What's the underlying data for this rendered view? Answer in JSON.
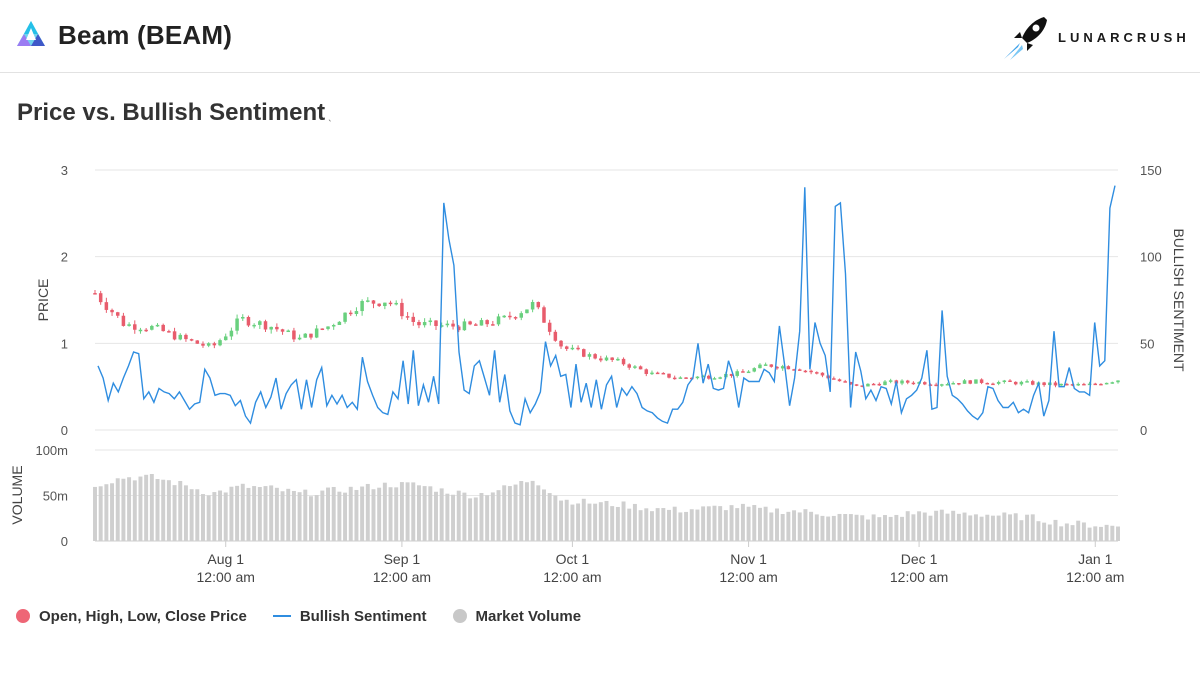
{
  "header": {
    "title": "Beam (BEAM)",
    "brand": "LUNARCRUSH",
    "logo_icon": "beam-triangle-icon",
    "brand_icon": "rocket-icon"
  },
  "colors": {
    "up": "#69d07e",
    "down": "#e85c6c",
    "sentiment": "#2f8de0",
    "volume": "#cfcfcf",
    "legend_ohlc": "#ee6676",
    "legend_volume": "#c8c8c8",
    "grid": "#e6e6e6"
  },
  "chart_data": {
    "type": "candlestick+line+bar",
    "title": "Price vs. Bullish Sentiment",
    "price_axis": {
      "label": "PRICE",
      "ticks": [
        0,
        1,
        2,
        3
      ],
      "range": [
        0,
        3
      ]
    },
    "sentiment_axis": {
      "label": "BULLISH SENTIMENT",
      "ticks": [
        0,
        50,
        100,
        150
      ],
      "range": [
        0,
        150
      ]
    },
    "volume_axis": {
      "label": "VOLUME",
      "ticks": [
        "0",
        "50m",
        "100m"
      ],
      "range": [
        0,
        100
      ]
    },
    "x_axis": {
      "start": "2018-07-09",
      "end": "2019-01-05",
      "ticks": [
        {
          "date": "Aug 1",
          "time": "12:00 am",
          "value": "2018-08-01"
        },
        {
          "date": "Sep 1",
          "time": "12:00 am",
          "value": "2018-09-01"
        },
        {
          "date": "Oct 1",
          "time": "12:00 am",
          "value": "2018-10-01"
        },
        {
          "date": "Nov 1",
          "time": "12:00 am",
          "value": "2018-11-01"
        },
        {
          "date": "Dec 1",
          "time": "12:00 am",
          "value": "2018-12-01"
        },
        {
          "date": "Jan 1",
          "time": "12:00 am",
          "value": "2019-01-01"
        }
      ]
    },
    "price_close_by_week": [
      1.58,
      1.22,
      1.18,
      1.05,
      0.95,
      1.28,
      1.2,
      1.05,
      1.2,
      1.45,
      1.5,
      1.22,
      1.2,
      1.2,
      1.28,
      1.45,
      0.95,
      0.85,
      0.78,
      0.65,
      0.6,
      0.62,
      0.65,
      0.75,
      0.72,
      0.62,
      0.5,
      0.55,
      0.55,
      0.54,
      0.56,
      0.55,
      0.54,
      0.52,
      0.52,
      0.58
    ],
    "sentiment_daily": [
      37,
      30,
      17,
      27,
      22,
      30,
      37,
      45,
      44,
      18,
      22,
      16,
      24,
      22,
      21,
      18,
      22,
      17,
      12,
      15,
      16,
      35,
      30,
      20,
      21,
      21,
      20,
      14,
      17,
      8,
      4,
      16,
      22,
      13,
      19,
      30,
      12,
      21,
      26,
      29,
      12,
      29,
      13,
      29,
      36,
      14,
      20,
      15,
      20,
      13,
      16,
      12,
      42,
      28,
      20,
      13,
      10,
      9,
      22,
      18,
      40,
      15,
      46,
      14,
      26,
      16,
      31,
      15,
      131,
      110,
      95,
      45,
      23,
      21,
      37,
      40,
      30,
      20,
      46,
      16,
      32,
      11,
      4,
      3,
      18,
      10,
      15,
      22,
      51,
      37,
      43,
      31,
      32,
      13,
      38,
      16,
      27,
      13,
      29,
      12,
      26,
      31,
      13,
      24,
      20,
      25,
      21,
      13,
      11,
      10,
      7,
      5,
      4,
      12,
      12,
      16,
      26,
      30,
      50,
      27,
      38,
      24,
      23,
      24,
      40,
      31,
      13,
      30,
      28,
      28,
      28,
      35,
      33,
      28,
      60,
      38,
      14,
      30,
      57,
      140,
      35,
      62,
      50,
      43,
      22,
      129,
      131,
      90,
      13,
      45,
      34,
      18,
      23,
      17,
      25,
      24,
      15,
      28,
      10,
      18,
      20,
      23,
      30,
      46,
      12,
      13,
      69,
      31,
      20,
      18,
      15,
      11,
      8,
      6,
      10,
      25,
      24,
      17,
      13,
      13,
      16,
      10,
      12,
      10,
      20,
      27,
      8,
      17,
      57,
      25,
      25,
      36,
      24,
      22,
      22,
      20,
      62,
      37,
      40,
      128,
      141
    ],
    "volume_by_week_m": [
      62,
      70,
      70,
      62,
      52,
      60,
      58,
      52,
      55,
      58,
      62,
      62,
      55,
      50,
      58,
      68,
      45,
      42,
      40,
      36,
      34,
      36,
      38,
      34,
      33,
      30,
      27,
      26,
      31,
      31,
      30,
      28,
      26,
      20,
      18,
      16
    ]
  },
  "legend": {
    "ohlc": "Open, High, Low, Close Price",
    "sentiment": "Bullish Sentiment",
    "volume": "Market Volume"
  }
}
